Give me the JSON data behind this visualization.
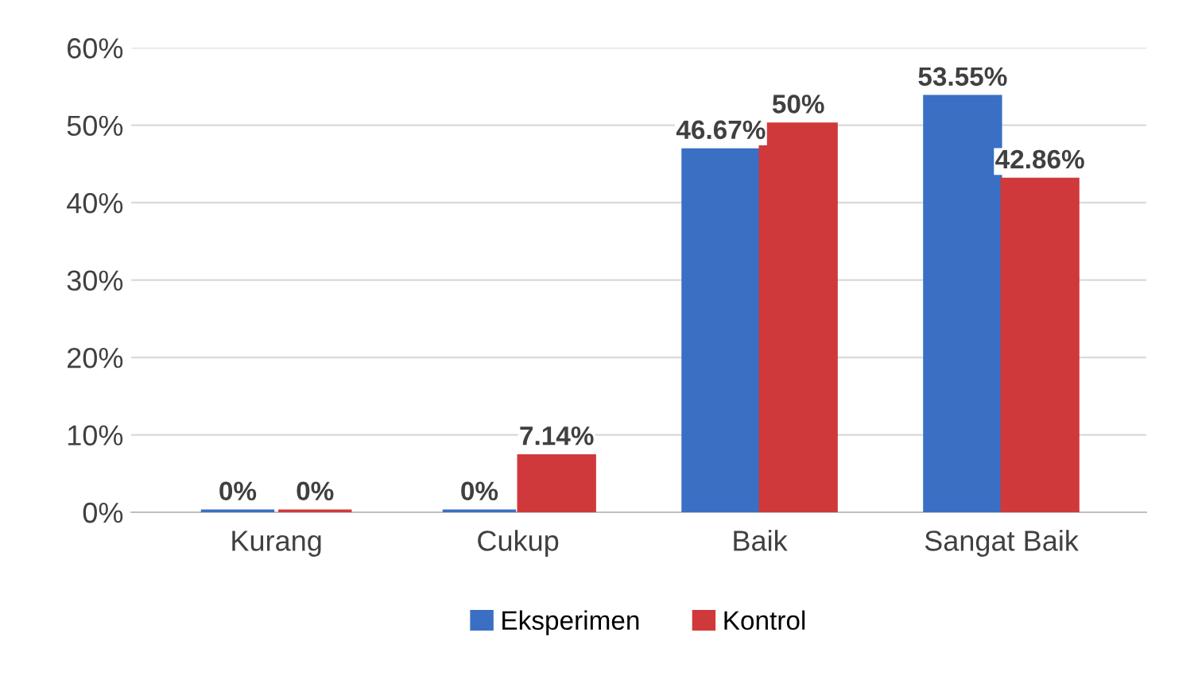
{
  "chart_data": {
    "type": "bar",
    "categories": [
      "Kurang",
      "Cukup",
      "Baik",
      "Sangat Baik"
    ],
    "series": [
      {
        "name": "Eksperimen",
        "color": "#3a6fc4",
        "values": [
          0,
          0,
          46.67,
          53.55
        ],
        "value_labels": [
          "0%",
          "0%",
          "46.67%",
          "53.55%"
        ]
      },
      {
        "name": "Kontrol",
        "color": "#d0393b",
        "values": [
          0,
          7.14,
          50,
          42.86
        ],
        "value_labels": [
          "0%",
          "7.14%",
          "50%",
          "42.86%"
        ]
      }
    ],
    "ylim": [
      0,
      60
    ],
    "yticks": [
      {
        "value": 0,
        "label": "0%"
      },
      {
        "value": 10,
        "label": "10%"
      },
      {
        "value": 20,
        "label": "20%"
      },
      {
        "value": 30,
        "label": "30%"
      },
      {
        "value": 40,
        "label": "40%"
      },
      {
        "value": 50,
        "label": "50%"
      },
      {
        "value": 60,
        "label": "60%"
      }
    ],
    "grid": "y",
    "legend": "bottom"
  }
}
